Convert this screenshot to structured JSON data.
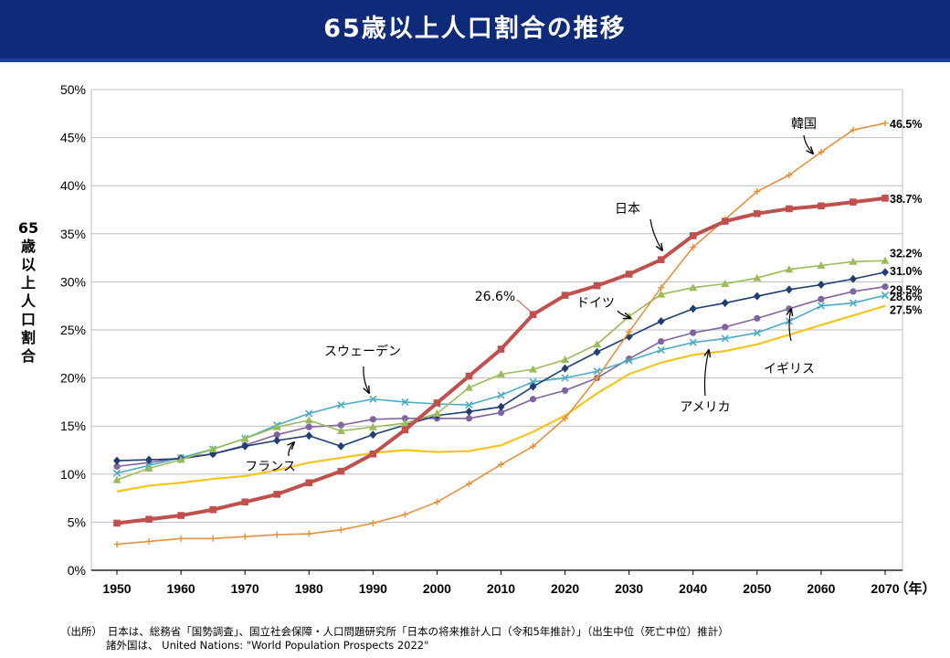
{
  "title": "65歳以上人口割合の推移",
  "chart_data": {
    "type": "line",
    "ylabel": "65歳以上人口割合",
    "xunit": "（年）",
    "ylim": [
      0,
      50
    ],
    "yticks": [
      "0%",
      "5%",
      "10%",
      "15%",
      "20%",
      "25%",
      "30%",
      "35%",
      "40%",
      "45%",
      "50%"
    ],
    "xticks": [
      "1950",
      "1960",
      "1970",
      "1980",
      "1990",
      "2000",
      "2010",
      "2020",
      "2030",
      "2040",
      "2050",
      "2060",
      "2070"
    ],
    "x": [
      1950,
      1955,
      1960,
      1965,
      1970,
      1975,
      1980,
      1985,
      1990,
      1995,
      2000,
      2005,
      2010,
      2015,
      2020,
      2025,
      2030,
      2035,
      2040,
      2045,
      2050,
      2055,
      2060,
      2065,
      2070
    ],
    "grid": "horizontal",
    "series": [
      {
        "key": "japan",
        "color": "#c0504d",
        "marker": "square",
        "width": 4,
        "values": [
          4.9,
          5.3,
          5.7,
          6.3,
          7.1,
          7.9,
          9.1,
          10.3,
          12.1,
          14.6,
          17.4,
          20.2,
          23.0,
          26.6,
          28.6,
          29.6,
          30.8,
          32.3,
          34.8,
          36.3,
          37.1,
          37.6,
          37.9,
          38.3,
          38.7
        ]
      },
      {
        "key": "korea",
        "color": "#e6913c",
        "marker": "plus",
        "width": 1.6,
        "values": [
          2.7,
          3.0,
          3.3,
          3.3,
          3.5,
          3.7,
          3.8,
          4.2,
          4.9,
          5.8,
          7.1,
          9.0,
          11.0,
          12.9,
          15.8,
          20.0,
          24.8,
          29.4,
          33.6,
          36.5,
          39.4,
          41.1,
          43.5,
          45.8,
          46.5
        ]
      },
      {
        "key": "germany",
        "color": "#9bbb59",
        "marker": "triangle",
        "width": 1.6,
        "values": [
          9.4,
          10.6,
          11.5,
          12.6,
          13.7,
          14.9,
          15.6,
          14.5,
          14.9,
          15.3,
          16.3,
          19.0,
          20.4,
          20.9,
          21.9,
          23.5,
          26.4,
          28.7,
          29.4,
          29.8,
          30.4,
          31.3,
          31.7,
          32.1,
          32.2
        ]
      },
      {
        "key": "france",
        "color": "#1f3e73",
        "marker": "diamond",
        "width": 1.6,
        "values": [
          11.4,
          11.5,
          11.6,
          12.1,
          12.9,
          13.5,
          14.0,
          12.9,
          14.1,
          15.1,
          16.1,
          16.5,
          17.0,
          19.1,
          21.0,
          22.7,
          24.3,
          25.9,
          27.2,
          27.8,
          28.5,
          29.2,
          29.7,
          30.3,
          31.0
        ]
      },
      {
        "key": "sweden",
        "color": "#4bacc6",
        "marker": "x",
        "width": 1.6,
        "values": [
          10.1,
          10.9,
          11.7,
          12.6,
          13.7,
          15.1,
          16.3,
          17.2,
          17.8,
          17.5,
          17.3,
          17.2,
          18.2,
          19.6,
          20.0,
          20.7,
          21.8,
          22.9,
          23.7,
          24.1,
          24.7,
          25.9,
          27.5,
          27.8,
          28.6
        ]
      },
      {
        "key": "uk",
        "color": "#8064a2",
        "marker": "circle",
        "width": 1.6,
        "values": [
          10.8,
          11.2,
          11.7,
          12.1,
          13.0,
          14.1,
          14.9,
          15.1,
          15.7,
          15.8,
          15.8,
          15.8,
          16.4,
          17.8,
          18.7,
          20.0,
          22.0,
          23.8,
          24.7,
          25.3,
          26.2,
          27.2,
          28.2,
          29.0,
          29.5
        ]
      },
      {
        "key": "usa",
        "color": "#f5c51d",
        "marker": "none",
        "width": 2.2,
        "values": [
          8.2,
          8.8,
          9.1,
          9.5,
          9.8,
          10.4,
          11.2,
          11.7,
          12.2,
          12.5,
          12.3,
          12.4,
          13.0,
          14.4,
          16.1,
          18.4,
          20.4,
          21.6,
          22.4,
          22.8,
          23.5,
          24.5,
          25.5,
          26.5,
          27.5
        ]
      }
    ],
    "end_labels": [
      {
        "key": "korea",
        "text": "46.5%"
      },
      {
        "key": "japan",
        "text": "38.7%"
      },
      {
        "key": "germany",
        "text": "32.2%"
      },
      {
        "key": "france",
        "text": "31.0%"
      },
      {
        "key": "uk",
        "text": "29.5%"
      },
      {
        "key": "sweden",
        "text": "28.6%"
      },
      {
        "key": "usa",
        "text": "27.5%"
      }
    ],
    "annotations": [
      {
        "text": "韓国",
        "target": "korea"
      },
      {
        "text": "日本",
        "target": "japan"
      },
      {
        "text": "26.6%",
        "target": "japan"
      },
      {
        "text": "ドイツ",
        "target": "germany"
      },
      {
        "text": "スウェーデン",
        "target": "sweden"
      },
      {
        "text": "フランス",
        "target": "france"
      },
      {
        "text": "イギリス",
        "target": "uk"
      },
      {
        "text": "アメリカ",
        "target": "usa"
      }
    ]
  },
  "source": {
    "line1": "（出所）　日本は、総務省「国勢調査」、国立社会保障・人口問題研究所「日本の将来推計人口（令和5年推計）」（出生中位（死亡中位）推計）",
    "line2": "諸外国は、 United Nations: \"World Population Prospects 2022\""
  }
}
